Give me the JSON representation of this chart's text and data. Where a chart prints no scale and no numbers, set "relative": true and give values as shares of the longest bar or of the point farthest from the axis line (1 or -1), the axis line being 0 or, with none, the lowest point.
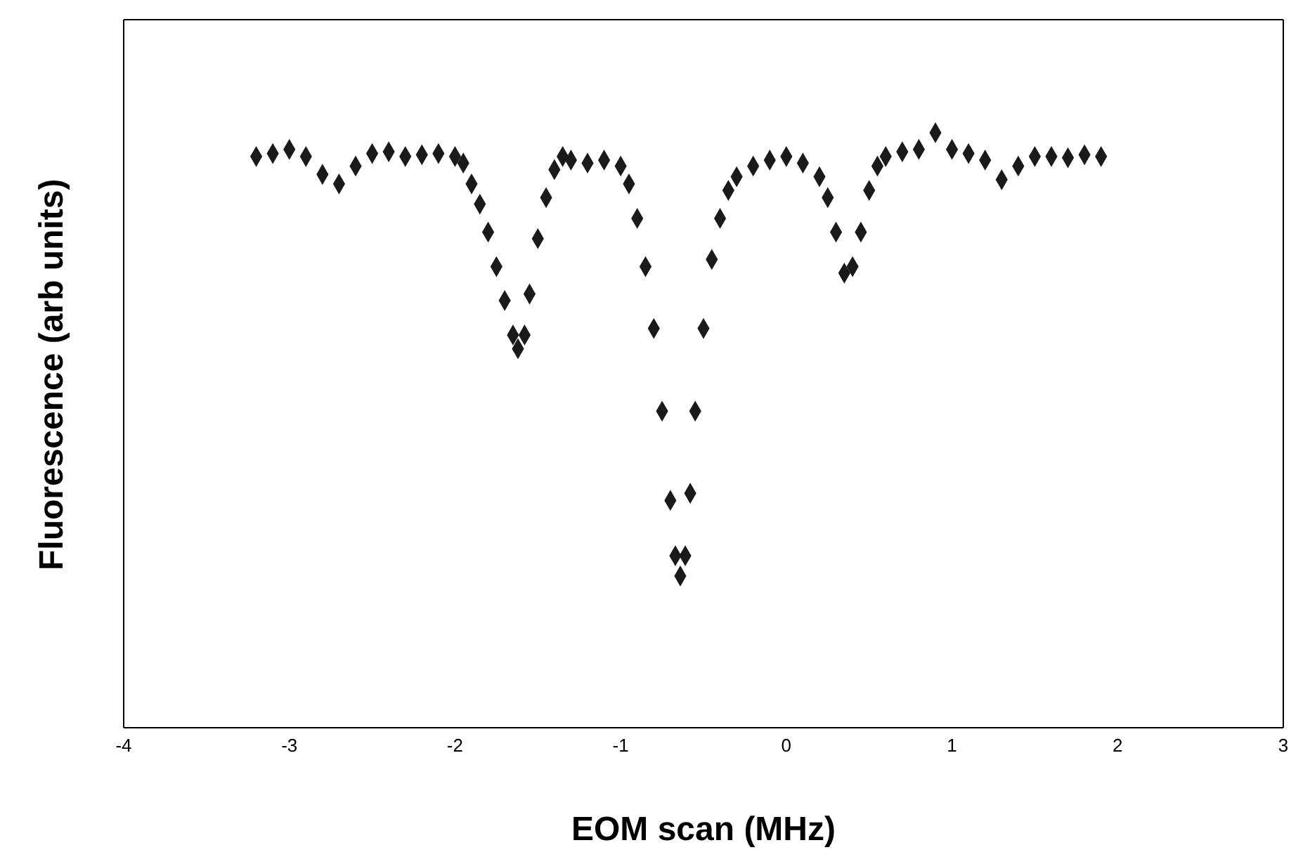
{
  "chart_data": {
    "type": "scatter",
    "xlabel": "EOM scan (MHz)",
    "ylabel": "Fluorescence (arb units)",
    "relative": true,
    "xlim": [
      -4,
      3
    ],
    "xticks": [
      -4,
      -3,
      -2,
      -1,
      0,
      1,
      2,
      3
    ],
    "legend": false,
    "marker": "diamond",
    "series": [
      {
        "color": "#1a1a1a",
        "x": [
          -3.2,
          -3.1,
          -3.0,
          -2.9,
          -2.8,
          -2.7,
          -2.6,
          -2.5,
          -2.4,
          -2.3,
          -2.2,
          -2.1,
          -2.0,
          -1.95,
          -1.9,
          -1.85,
          -1.8,
          -1.75,
          -1.7,
          -1.65,
          -1.62,
          -1.58,
          -1.55,
          -1.5,
          -1.45,
          -1.4,
          -1.35,
          -1.3,
          -1.2,
          -1.1,
          -1.0,
          -0.95,
          -0.9,
          -0.85,
          -0.8,
          -0.75,
          -0.7,
          -0.67,
          -0.64,
          -0.61,
          -0.58,
          -0.55,
          -0.5,
          -0.45,
          -0.4,
          -0.35,
          -0.3,
          -0.2,
          -0.1,
          0.0,
          0.1,
          0.2,
          0.25,
          0.3,
          0.35,
          0.4,
          0.45,
          0.5,
          0.55,
          0.6,
          0.7,
          0.8,
          0.9,
          1.0,
          1.1,
          1.2,
          1.3,
          1.4,
          1.5,
          1.6,
          1.7,
          1.8,
          1.9
        ],
        "values": [
          0.96,
          0.965,
          0.972,
          0.96,
          0.93,
          0.914,
          0.944,
          0.965,
          0.968,
          0.96,
          0.963,
          0.965,
          0.96,
          0.949,
          0.914,
          0.88,
          0.833,
          0.775,
          0.718,
          0.66,
          0.637,
          0.66,
          0.729,
          0.822,
          0.891,
          0.938,
          0.96,
          0.954,
          0.949,
          0.954,
          0.944,
          0.914,
          0.856,
          0.775,
          0.671,
          0.532,
          0.382,
          0.289,
          0.255,
          0.289,
          0.394,
          0.532,
          0.671,
          0.787,
          0.856,
          0.903,
          0.926,
          0.944,
          0.954,
          0.96,
          0.949,
          0.926,
          0.891,
          0.833,
          0.764,
          0.775,
          0.833,
          0.903,
          0.944,
          0.96,
          0.968,
          0.972,
          1.0,
          0.972,
          0.965,
          0.954,
          0.921,
          0.944,
          0.96,
          0.96,
          0.958,
          0.963,
          0.96
        ]
      }
    ]
  }
}
